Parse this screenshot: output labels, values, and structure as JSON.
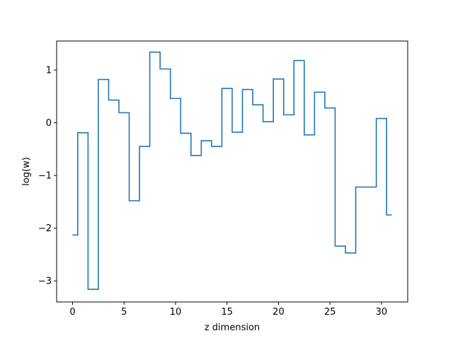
{
  "chart_data": {
    "type": "line",
    "drawstyle": "steps-mid",
    "title": "",
    "xlabel": "z dimension",
    "ylabel": "log(w)",
    "xlim": [
      -1.55,
      32.55
    ],
    "ylim": [
      -3.4,
      1.55
    ],
    "x_ticks": [
      0,
      5,
      10,
      15,
      20,
      25,
      30
    ],
    "y_ticks": [
      -3,
      -2,
      -1,
      0,
      1
    ],
    "y_tick_labels": [
      "−3",
      "−2",
      "−1",
      "0",
      "1"
    ],
    "grid": false,
    "legend": "none",
    "series": [
      {
        "color": "#1f77b4",
        "x": [
          0,
          1,
          2,
          3,
          4,
          5,
          6,
          7,
          8,
          9,
          10,
          11,
          12,
          13,
          14,
          15,
          16,
          17,
          18,
          19,
          20,
          21,
          22,
          23,
          24,
          25,
          26,
          27,
          28,
          29,
          30,
          31
        ],
        "values": [
          -2.13,
          -0.19,
          -3.16,
          0.82,
          0.43,
          0.19,
          -1.48,
          -0.45,
          1.34,
          1.02,
          0.46,
          -0.2,
          -0.62,
          -0.34,
          -0.45,
          0.65,
          -0.18,
          0.63,
          0.34,
          0.02,
          0.83,
          0.15,
          1.18,
          -0.23,
          0.58,
          0.28,
          -2.34,
          -2.47,
          -1.22,
          -1.22,
          0.08,
          -1.75
        ]
      }
    ]
  }
}
